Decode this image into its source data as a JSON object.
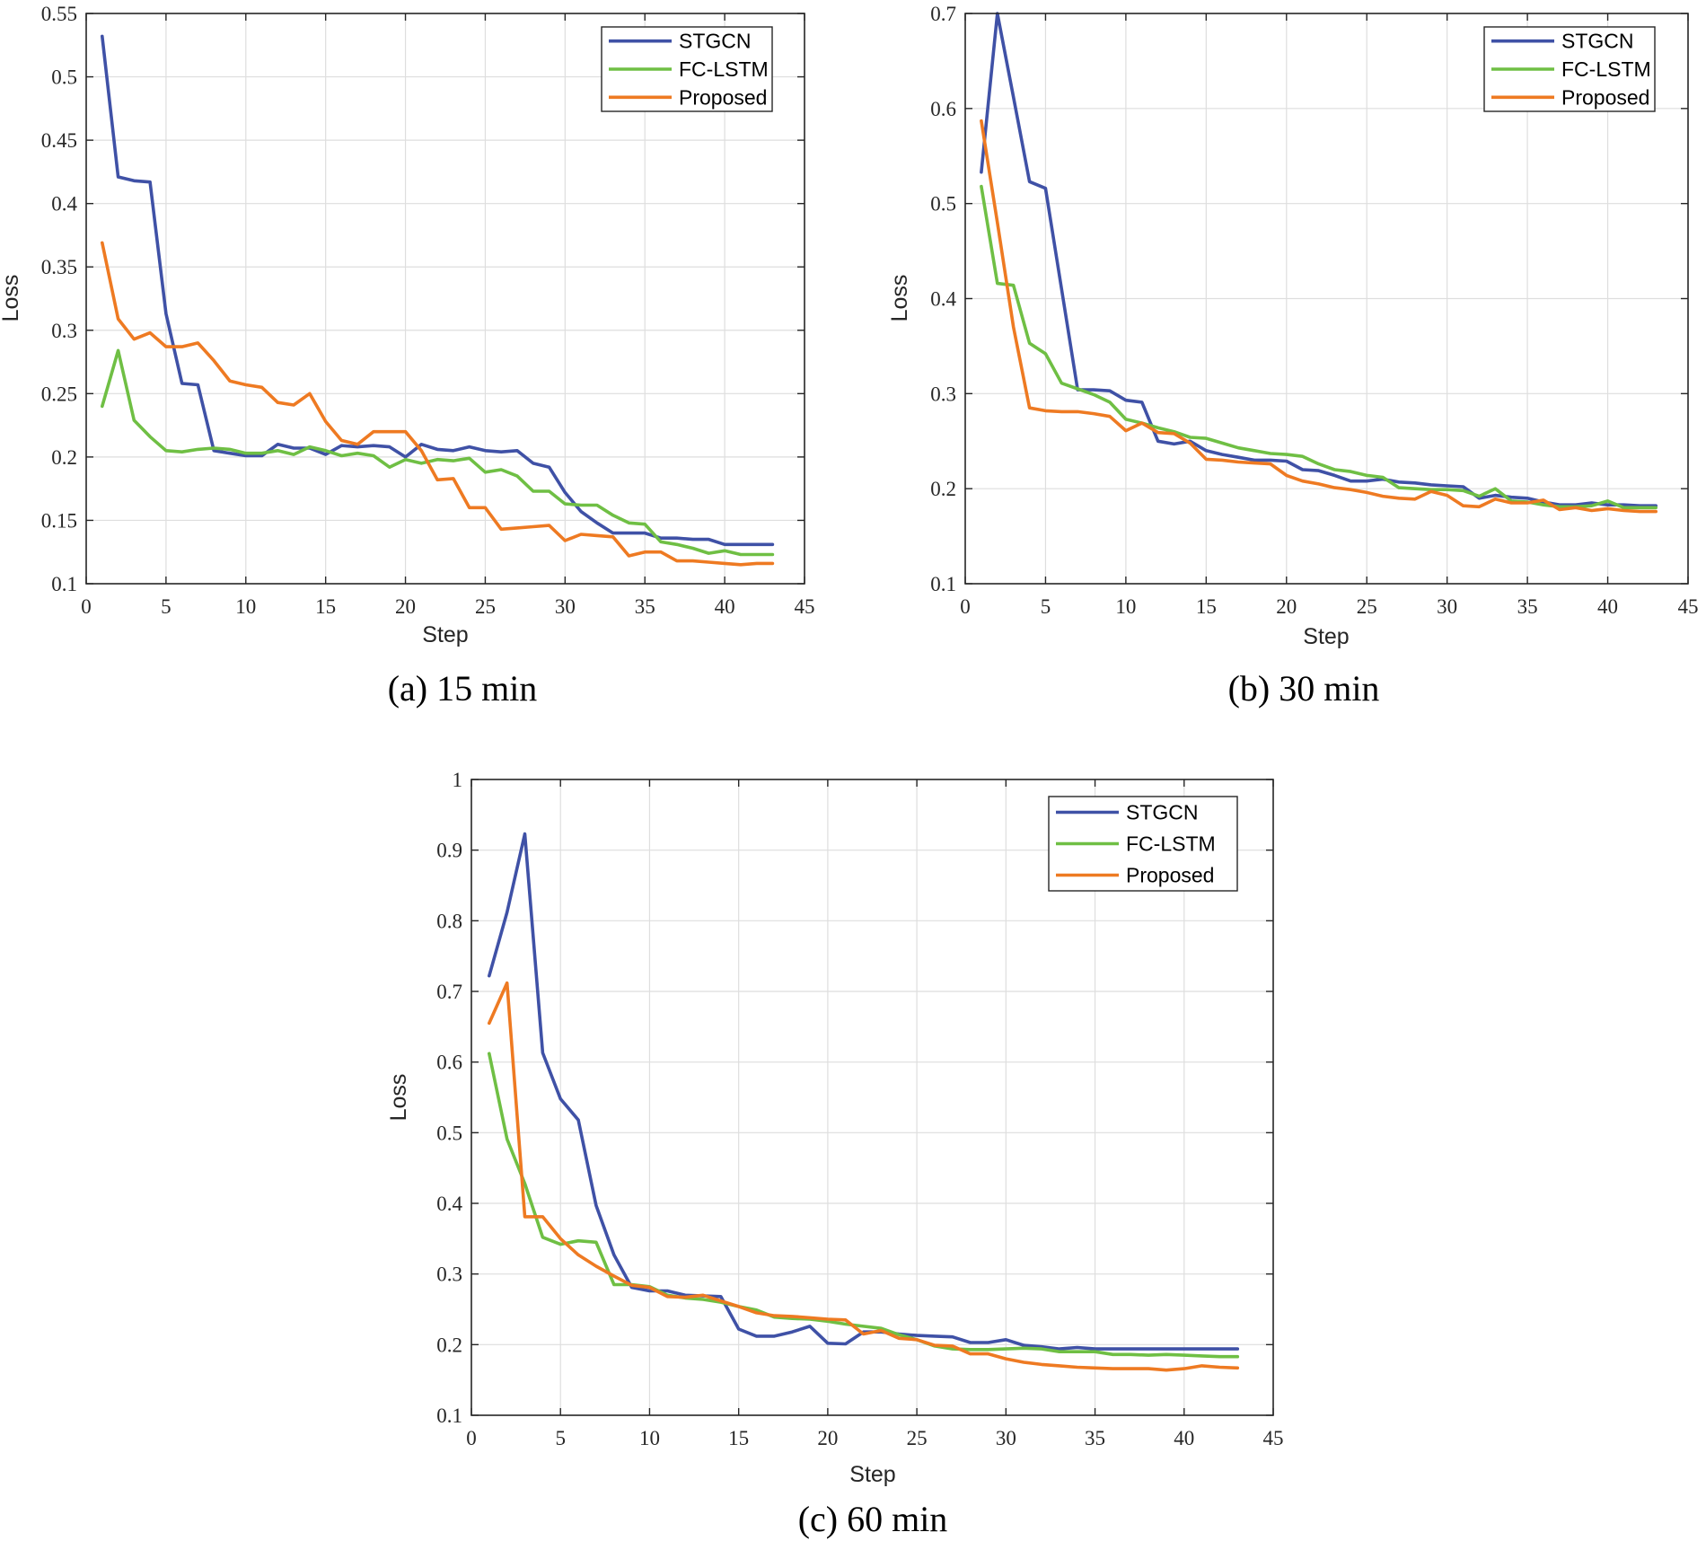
{
  "chart_data": [
    {
      "id": "a",
      "type": "line",
      "caption": "(a) 15 min",
      "xlabel": "Step",
      "ylabel": "Loss",
      "xlim": [
        0,
        45
      ],
      "ylim": [
        0.1,
        0.55
      ],
      "xticks": [
        0,
        5,
        10,
        15,
        20,
        25,
        30,
        35,
        40,
        45
      ],
      "xtick_labels": [
        "0",
        "5",
        "10",
        "15",
        "20",
        "25",
        "30",
        "35",
        "40",
        "45"
      ],
      "yticks": [
        0.1,
        0.15,
        0.2,
        0.25,
        0.3,
        0.35,
        0.4,
        0.45,
        0.5,
        0.55
      ],
      "ytick_labels": [
        "0.1",
        "0.15",
        "0.2",
        "0.25",
        "0.3",
        "0.35",
        "0.4",
        "0.45",
        "0.5",
        "0.55"
      ],
      "grid": true,
      "legend_position": "top-right",
      "x": [
        1,
        2,
        3,
        4,
        5,
        6,
        7,
        8,
        9,
        10,
        11,
        12,
        13,
        14,
        15,
        16,
        17,
        18,
        19,
        20,
        21,
        22,
        23,
        24,
        25,
        26,
        27,
        28,
        29,
        30,
        31,
        32,
        33,
        34,
        35,
        36,
        37,
        38,
        39,
        40,
        41,
        42,
        43
      ],
      "series": [
        {
          "name": "STGCN",
          "color": "#3f51a6",
          "values": [
            0.532,
            0.421,
            0.418,
            0.417,
            0.313,
            0.258,
            0.257,
            0.205,
            0.203,
            0.201,
            0.201,
            0.21,
            0.207,
            0.207,
            0.202,
            0.209,
            0.208,
            0.209,
            0.208,
            0.2,
            0.21,
            0.206,
            0.205,
            0.208,
            0.205,
            0.204,
            0.205,
            0.195,
            0.192,
            0.172,
            0.157,
            0.148,
            0.14,
            0.14,
            0.14,
            0.136,
            0.136,
            0.135,
            0.135,
            0.131,
            0.131,
            0.131,
            0.131
          ]
        },
        {
          "name": "FC-LSTM",
          "color": "#6fbf44",
          "values": [
            0.24,
            0.284,
            0.229,
            0.216,
            0.205,
            0.204,
            0.206,
            0.207,
            0.206,
            0.203,
            0.203,
            0.205,
            0.202,
            0.208,
            0.205,
            0.201,
            0.203,
            0.201,
            0.192,
            0.198,
            0.195,
            0.198,
            0.197,
            0.199,
            0.188,
            0.19,
            0.185,
            0.173,
            0.173,
            0.163,
            0.162,
            0.162,
            0.154,
            0.148,
            0.147,
            0.133,
            0.131,
            0.128,
            0.124,
            0.126,
            0.123,
            0.123,
            0.123
          ]
        },
        {
          "name": "Proposed",
          "color": "#ee7a22",
          "values": [
            0.369,
            0.309,
            0.293,
            0.298,
            0.287,
            0.287,
            0.29,
            0.276,
            0.26,
            0.257,
            0.255,
            0.243,
            0.241,
            0.25,
            0.228,
            0.213,
            0.21,
            0.22,
            0.22,
            0.22,
            0.205,
            0.182,
            0.183,
            0.16,
            0.16,
            0.143,
            0.144,
            0.145,
            0.146,
            0.134,
            0.139,
            0.138,
            0.137,
            0.122,
            0.125,
            0.125,
            0.118,
            0.118,
            0.117,
            0.116,
            0.115,
            0.116,
            0.116
          ]
        }
      ]
    },
    {
      "id": "b",
      "type": "line",
      "caption": "(b) 30 min",
      "xlabel": "Step",
      "ylabel": "Loss",
      "xlim": [
        0,
        45
      ],
      "ylim": [
        0.1,
        0.7
      ],
      "xticks": [
        0,
        5,
        10,
        15,
        20,
        25,
        30,
        35,
        40,
        45
      ],
      "xtick_labels": [
        "0",
        "5",
        "10",
        "15",
        "20",
        "25",
        "30",
        "35",
        "40",
        "45"
      ],
      "yticks": [
        0.1,
        0.2,
        0.3,
        0.4,
        0.5,
        0.6,
        0.7
      ],
      "ytick_labels": [
        "0.1",
        "0.2",
        "0.3",
        "0.4",
        "0.5",
        "0.6",
        "0.7"
      ],
      "grid": true,
      "legend_position": "top-right",
      "x": [
        1,
        2,
        3,
        4,
        5,
        6,
        7,
        8,
        9,
        10,
        11,
        12,
        13,
        14,
        15,
        16,
        17,
        18,
        19,
        20,
        21,
        22,
        23,
        24,
        25,
        26,
        27,
        28,
        29,
        30,
        31,
        32,
        33,
        34,
        35,
        36,
        37,
        38,
        39,
        40,
        41,
        42,
        43
      ],
      "series": [
        {
          "name": "STGCN",
          "color": "#3f51a6",
          "values": [
            0.533,
            0.7,
            0.612,
            0.523,
            0.516,
            0.41,
            0.304,
            0.304,
            0.303,
            0.293,
            0.291,
            0.25,
            0.247,
            0.25,
            0.24,
            0.236,
            0.233,
            0.23,
            0.23,
            0.229,
            0.22,
            0.219,
            0.214,
            0.208,
            0.208,
            0.21,
            0.207,
            0.206,
            0.204,
            0.203,
            0.202,
            0.19,
            0.193,
            0.191,
            0.19,
            0.186,
            0.183,
            0.183,
            0.185,
            0.183,
            0.183,
            0.182,
            0.182
          ]
        },
        {
          "name": "FC-LSTM",
          "color": "#6fbf44",
          "values": [
            0.518,
            0.416,
            0.414,
            0.353,
            0.342,
            0.311,
            0.305,
            0.299,
            0.291,
            0.273,
            0.269,
            0.264,
            0.26,
            0.254,
            0.253,
            0.248,
            0.243,
            0.24,
            0.237,
            0.236,
            0.234,
            0.226,
            0.22,
            0.218,
            0.214,
            0.212,
            0.201,
            0.2,
            0.199,
            0.199,
            0.198,
            0.192,
            0.2,
            0.187,
            0.186,
            0.183,
            0.181,
            0.181,
            0.182,
            0.187,
            0.18,
            0.18,
            0.18
          ]
        },
        {
          "name": "Proposed",
          "color": "#ee7a22",
          "values": [
            0.587,
            0.48,
            0.37,
            0.285,
            0.282,
            0.281,
            0.281,
            0.279,
            0.276,
            0.261,
            0.269,
            0.259,
            0.258,
            0.248,
            0.231,
            0.23,
            0.228,
            0.227,
            0.226,
            0.214,
            0.208,
            0.205,
            0.201,
            0.199,
            0.196,
            0.192,
            0.19,
            0.189,
            0.197,
            0.193,
            0.182,
            0.181,
            0.189,
            0.185,
            0.185,
            0.188,
            0.178,
            0.18,
            0.177,
            0.179,
            0.177,
            0.176,
            0.176
          ]
        }
      ]
    },
    {
      "id": "c",
      "type": "line",
      "caption": "(c) 60 min",
      "xlabel": "Step",
      "ylabel": "Loss",
      "xlim": [
        0,
        45
      ],
      "ylim": [
        0.1,
        1.0
      ],
      "xticks": [
        0,
        5,
        10,
        15,
        20,
        25,
        30,
        35,
        40,
        45
      ],
      "xtick_labels": [
        "0",
        "5",
        "10",
        "15",
        "20",
        "25",
        "30",
        "35",
        "40",
        "45"
      ],
      "yticks": [
        0.1,
        0.2,
        0.3,
        0.4,
        0.5,
        0.6,
        0.7,
        0.8,
        0.9,
        1.0
      ],
      "ytick_labels": [
        "0.1",
        "0.2",
        "0.3",
        "0.4",
        "0.5",
        "0.6",
        "0.7",
        "0.8",
        "0.9",
        "1"
      ],
      "grid": true,
      "legend_position": "top-right",
      "x": [
        1,
        2,
        3,
        4,
        5,
        6,
        7,
        8,
        9,
        10,
        11,
        12,
        13,
        14,
        15,
        16,
        17,
        18,
        19,
        20,
        21,
        22,
        23,
        24,
        25,
        26,
        27,
        28,
        29,
        30,
        31,
        32,
        33,
        34,
        35,
        36,
        37,
        38,
        39,
        40,
        41,
        42,
        43
      ],
      "series": [
        {
          "name": "STGCN",
          "color": "#3f51a6",
          "values": [
            0.722,
            0.812,
            0.923,
            0.613,
            0.548,
            0.518,
            0.397,
            0.327,
            0.281,
            0.276,
            0.276,
            0.27,
            0.269,
            0.268,
            0.222,
            0.212,
            0.212,
            0.218,
            0.226,
            0.202,
            0.201,
            0.218,
            0.218,
            0.215,
            0.213,
            0.212,
            0.211,
            0.203,
            0.203,
            0.207,
            0.199,
            0.197,
            0.194,
            0.196,
            0.194,
            0.194,
            0.194,
            0.194,
            0.194,
            0.194,
            0.194,
            0.194,
            0.194
          ]
        },
        {
          "name": "FC-LSTM",
          "color": "#6fbf44",
          "values": [
            0.612,
            0.491,
            0.428,
            0.352,
            0.342,
            0.347,
            0.345,
            0.285,
            0.285,
            0.282,
            0.27,
            0.266,
            0.264,
            0.26,
            0.254,
            0.249,
            0.239,
            0.237,
            0.236,
            0.233,
            0.229,
            0.226,
            0.223,
            0.214,
            0.207,
            0.198,
            0.194,
            0.193,
            0.193,
            0.194,
            0.195,
            0.194,
            0.19,
            0.19,
            0.19,
            0.186,
            0.186,
            0.185,
            0.186,
            0.185,
            0.184,
            0.183,
            0.183
          ]
        },
        {
          "name": "Proposed",
          "color": "#ee7a22",
          "values": [
            0.655,
            0.712,
            0.381,
            0.381,
            0.35,
            0.327,
            0.311,
            0.297,
            0.284,
            0.281,
            0.268,
            0.267,
            0.27,
            0.262,
            0.254,
            0.245,
            0.241,
            0.24,
            0.238,
            0.236,
            0.235,
            0.215,
            0.22,
            0.209,
            0.207,
            0.199,
            0.198,
            0.187,
            0.187,
            0.18,
            0.175,
            0.172,
            0.17,
            0.168,
            0.167,
            0.166,
            0.166,
            0.166,
            0.164,
            0.166,
            0.17,
            0.168,
            0.167
          ]
        }
      ]
    }
  ]
}
